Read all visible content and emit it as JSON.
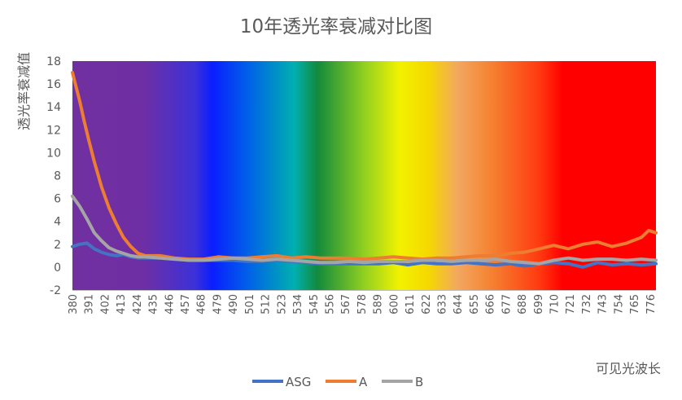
{
  "chart_data": {
    "type": "line",
    "title": "10年透光率衰减对比图",
    "ylabel": "透光率衰减值",
    "xlabel": "可见光波长",
    "ylim": [
      -2,
      18
    ],
    "y_ticks": [
      18,
      16,
      14,
      12,
      10,
      8,
      6,
      4,
      2,
      0,
      -2
    ],
    "x_range": [
      380,
      780
    ],
    "x_ticks": [
      380,
      391,
      402,
      413,
      424,
      435,
      446,
      457,
      468,
      479,
      490,
      501,
      512,
      523,
      534,
      545,
      556,
      567,
      578,
      589,
      600,
      611,
      622,
      633,
      644,
      655,
      666,
      677,
      688,
      699,
      710,
      721,
      732,
      743,
      754,
      765,
      776
    ],
    "grid": false,
    "legend_position": "bottom",
    "background": "visible-spectrum gradient (violet → blue → green → yellow → orange → red)",
    "series": [
      {
        "name": "ASG",
        "color": "#4472C4",
        "x": [
          380,
          385,
          390,
          395,
          400,
          405,
          410,
          415,
          420,
          425,
          430,
          440,
          450,
          460,
          470,
          480,
          490,
          500,
          510,
          520,
          530,
          540,
          550,
          560,
          570,
          580,
          590,
          600,
          610,
          620,
          630,
          640,
          650,
          660,
          670,
          680,
          690,
          700,
          710,
          720,
          730,
          740,
          750,
          760,
          770,
          780
        ],
        "values": [
          1.8,
          2.0,
          2.1,
          1.6,
          1.3,
          1.1,
          1.0,
          1.1,
          0.9,
          0.8,
          0.8,
          0.8,
          0.7,
          0.6,
          0.6,
          0.6,
          0.6,
          0.5,
          0.5,
          0.6,
          0.5,
          0.4,
          0.3,
          0.3,
          0.3,
          0.3,
          0.3,
          0.4,
          0.2,
          0.4,
          0.3,
          0.3,
          0.4,
          0.3,
          0.2,
          0.3,
          0.1,
          0.3,
          0.4,
          0.3,
          0.0,
          0.4,
          0.2,
          0.3,
          0.2,
          0.3
        ]
      },
      {
        "name": "A",
        "color": "#ED7D31",
        "x": [
          380,
          382,
          385,
          388,
          391,
          395,
          400,
          405,
          410,
          415,
          420,
          425,
          430,
          440,
          450,
          460,
          470,
          480,
          490,
          500,
          510,
          520,
          530,
          540,
          550,
          560,
          570,
          580,
          590,
          600,
          610,
          620,
          630,
          640,
          650,
          660,
          670,
          680,
          690,
          700,
          710,
          720,
          730,
          740,
          750,
          760,
          770,
          775,
          780
        ],
        "values": [
          17.0,
          16.0,
          14.5,
          12.8,
          11.2,
          9.2,
          7.0,
          5.2,
          3.8,
          2.6,
          1.8,
          1.2,
          1.0,
          1.0,
          0.8,
          0.7,
          0.7,
          0.9,
          0.8,
          0.8,
          0.9,
          1.0,
          0.8,
          0.9,
          0.8,
          0.8,
          0.8,
          0.7,
          0.8,
          0.9,
          0.8,
          0.7,
          0.8,
          0.8,
          0.9,
          1.0,
          1.0,
          1.2,
          1.3,
          1.6,
          1.9,
          1.6,
          2.0,
          2.2,
          1.8,
          2.1,
          2.6,
          3.2,
          3.0
        ]
      },
      {
        "name": "B",
        "color": "#A5A5A5",
        "x": [
          380,
          385,
          390,
          395,
          400,
          405,
          410,
          415,
          420,
          425,
          430,
          440,
          450,
          460,
          470,
          480,
          490,
          500,
          510,
          520,
          530,
          540,
          550,
          560,
          570,
          580,
          590,
          600,
          610,
          620,
          630,
          640,
          650,
          660,
          670,
          680,
          690,
          700,
          710,
          720,
          730,
          740,
          750,
          760,
          770,
          780
        ],
        "values": [
          6.2,
          5.3,
          4.2,
          3.0,
          2.3,
          1.7,
          1.4,
          1.2,
          1.0,
          0.9,
          0.9,
          0.8,
          0.7,
          0.6,
          0.6,
          0.7,
          0.8,
          0.7,
          0.6,
          0.7,
          0.6,
          0.5,
          0.4,
          0.4,
          0.5,
          0.4,
          0.5,
          0.5,
          0.5,
          0.6,
          0.6,
          0.5,
          0.6,
          0.6,
          0.7,
          0.5,
          0.4,
          0.3,
          0.6,
          0.8,
          0.6,
          0.7,
          0.7,
          0.6,
          0.7,
          0.6
        ]
      }
    ]
  }
}
